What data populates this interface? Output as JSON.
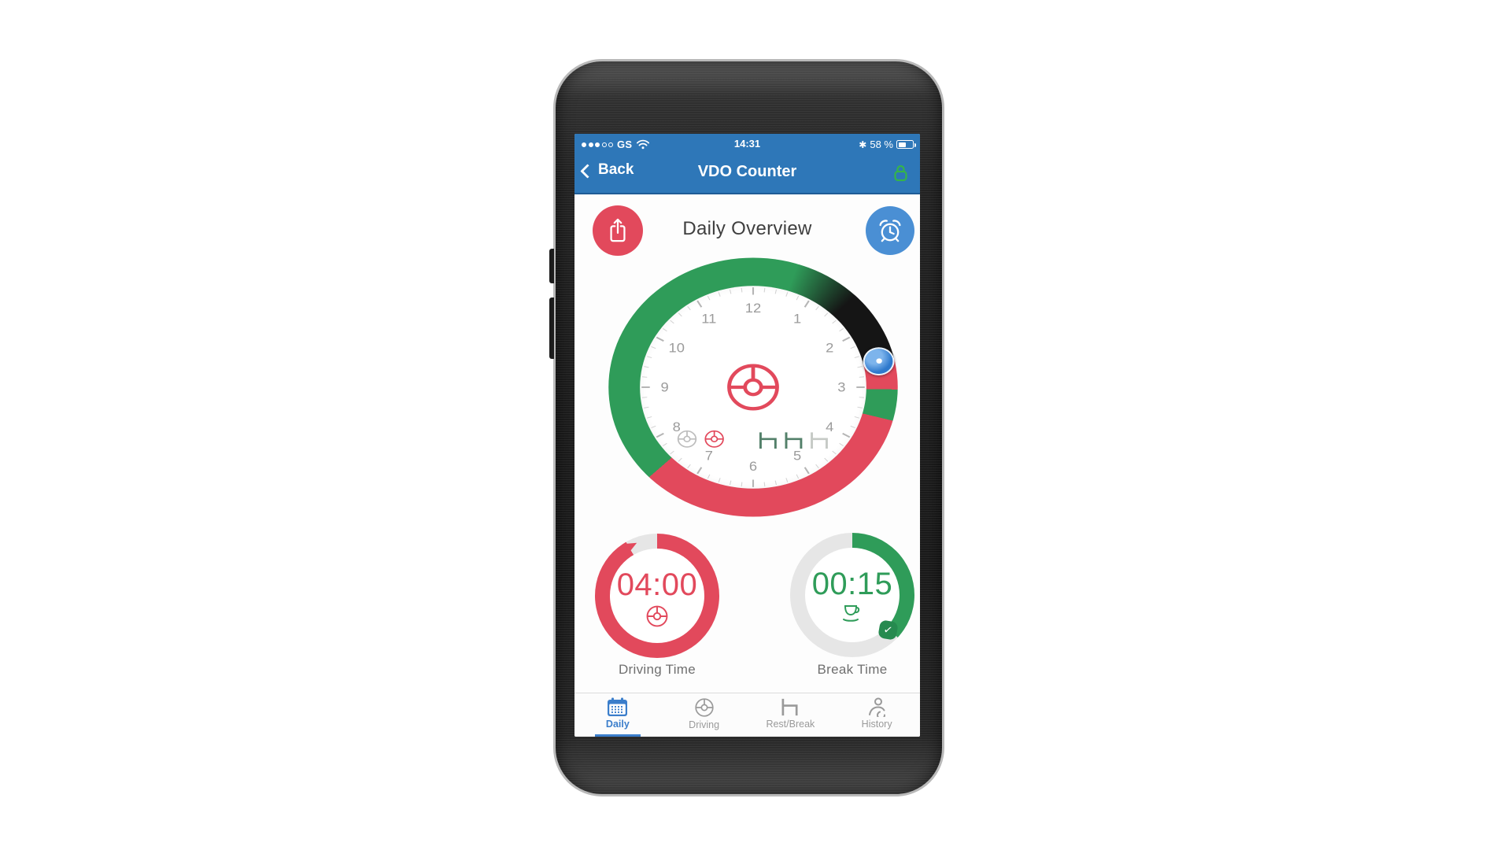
{
  "status_bar": {
    "carrier": "GS",
    "signal_filled": 3,
    "signal_total": 5,
    "time": "14:31",
    "bluetooth_glyph": "✱",
    "battery_percent": "58 %"
  },
  "nav_bar": {
    "back_label": "Back",
    "title": "VDO Counter"
  },
  "overview": {
    "title": "Daily Overview"
  },
  "dial": {
    "clock_numbers": [
      "12",
      "1",
      "2",
      "3",
      "4",
      "5",
      "6",
      "7",
      "8",
      "9",
      "10",
      "11"
    ],
    "ring_segments": [
      {
        "from_deg": 0,
        "to_deg": 18,
        "color": "green"
      },
      {
        "from_deg": 18,
        "to_deg": 45,
        "color": "green-to-black-gradient"
      },
      {
        "from_deg": 45,
        "to_deg": 77,
        "color": "black"
      },
      {
        "from_deg": 77,
        "to_deg": 91,
        "color": "red"
      },
      {
        "from_deg": 91,
        "to_deg": 105,
        "color": "green"
      },
      {
        "from_deg": 105,
        "to_deg": 226,
        "color": "red"
      },
      {
        "from_deg": 226,
        "to_deg": 360,
        "color": "green"
      }
    ],
    "marker_deg": 77,
    "inner_icons": [
      "steering-wheel-gray",
      "steering-wheel-red",
      "rest-green",
      "rest-green",
      "rest-gray"
    ]
  },
  "gauges": {
    "driving": {
      "value": "04:00",
      "label": "Driving Time",
      "progress_deg": 330
    },
    "break": {
      "value": "00:15",
      "label": "Break Time",
      "progress_deg": 133
    },
    "break_badge_glyph": "✓"
  },
  "tab_bar": {
    "tabs": [
      {
        "label": "Daily",
        "icon": "calendar-icon",
        "active": true
      },
      {
        "label": "Driving",
        "icon": "steering-wheel-icon",
        "active": false
      },
      {
        "label": "Rest/Break",
        "icon": "rest-icon",
        "active": false
      },
      {
        "label": "History",
        "icon": "driver-history-icon",
        "active": false
      }
    ]
  },
  "colors": {
    "bar_blue": "#2e77b8",
    "bar_blue_dark": "#1f5c96",
    "accent_red": "#e2495c",
    "accent_green": "#2f9c59",
    "ring_black": "#151515",
    "alarm_blue": "#4a8fd4",
    "marker_blue": "#2e79cc",
    "tab_blue": "#3b7ecb",
    "tab_gray": "#9a9a9a",
    "gauge_gray": "#e6e6e6",
    "lock_green": "#35b44a",
    "badge_green": "#268a4f",
    "rest_green": "#53806a",
    "rest_gray": "#c6cac6",
    "text_dark": "#3f3f3f",
    "text_gray": "#6f6f6f",
    "clock_gray": "#9b9b9b"
  }
}
